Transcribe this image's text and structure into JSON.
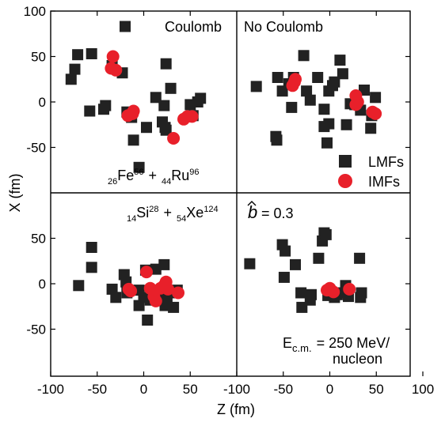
{
  "chart_data": {
    "type": "scatter",
    "xlabel": "Z (fm)",
    "ylabel": "X (fm)",
    "x_ticks_left": [
      "-100",
      "-50",
      "0",
      "50"
    ],
    "x_ticks_right": [
      "-100",
      "-50",
      "0",
      "50",
      "100"
    ],
    "y_ticks_top": [
      "100",
      "50",
      "0",
      "-50"
    ],
    "y_ticks_bottom": [
      "50",
      "0",
      "-50"
    ],
    "panel_xlim": [
      -100,
      100
    ],
    "panel_ylim": [
      -100,
      100
    ],
    "legend": {
      "placement": "inside top-right panel, lower-right",
      "entries": [
        {
          "label": "LMFs",
          "marker": "square",
          "color": "#222222"
        },
        {
          "label": "IMFs",
          "marker": "circle",
          "color": "#e8202a"
        }
      ]
    },
    "colors": {
      "lmf": "#222222",
      "imf": "#e8202a"
    },
    "panels": [
      {
        "id": "top-left",
        "label": "Coulomb",
        "reaction": {
          "z1": "26",
          "sym1": "Fe",
          "a1": "56",
          "plus": "+",
          "z2": "44",
          "sym2": "Ru",
          "a2": "96"
        },
        "lmf": [
          [
            -20,
            83
          ],
          [
            -78,
            25
          ],
          [
            -74,
            36
          ],
          [
            -71,
            52
          ],
          [
            -56,
            53
          ],
          [
            -58,
            -10
          ],
          [
            -43,
            -8
          ],
          [
            -41,
            -4
          ],
          [
            -34,
            40
          ],
          [
            -23,
            32
          ],
          [
            -11,
            -42
          ],
          [
            -5,
            -72
          ],
          [
            -18,
            -11
          ],
          [
            -13,
            -17
          ],
          [
            3,
            -28
          ],
          [
            13,
            5
          ],
          [
            20,
            -22
          ],
          [
            22,
            -4
          ],
          [
            23,
            -28
          ],
          [
            24,
            -31
          ],
          [
            24,
            42
          ],
          [
            29,
            15
          ],
          [
            50,
            -3
          ],
          [
            53,
            -15
          ],
          [
            58,
            0
          ],
          [
            61,
            4
          ]
        ],
        "imf": [
          [
            -33,
            50
          ],
          [
            -35,
            37
          ],
          [
            -30,
            35
          ],
          [
            -17,
            -15
          ],
          [
            -12,
            -13
          ],
          [
            -11,
            -10
          ],
          [
            32,
            -40
          ],
          [
            43,
            -19
          ],
          [
            47,
            -16
          ],
          [
            52,
            -16
          ]
        ]
      },
      {
        "id": "top-right",
        "label": "No Coulomb",
        "lmf": [
          [
            -79,
            17
          ],
          [
            -56,
            27
          ],
          [
            -58,
            -38
          ],
          [
            -57,
            -42
          ],
          [
            -51,
            12
          ],
          [
            -44,
            20
          ],
          [
            -41,
            -6
          ],
          [
            -39,
            27
          ],
          [
            -28,
            51
          ],
          [
            -25,
            12
          ],
          [
            -21,
            2
          ],
          [
            -13,
            27
          ],
          [
            -6,
            -8
          ],
          [
            -6,
            -27
          ],
          [
            -3,
            -45
          ],
          [
            -1,
            -24
          ],
          [
            -1,
            12
          ],
          [
            3,
            18
          ],
          [
            5,
            22
          ],
          [
            11,
            46
          ],
          [
            14,
            31
          ],
          [
            18,
            -25
          ],
          [
            22,
            -2
          ],
          [
            27,
            -3
          ],
          [
            33,
            -9
          ],
          [
            37,
            13
          ],
          [
            44,
            -29
          ],
          [
            45,
            -15
          ],
          [
            49,
            5
          ]
        ],
        "imf": [
          [
            -40,
            18
          ],
          [
            -37,
            25
          ],
          [
            -38,
            22
          ],
          [
            28,
            7
          ],
          [
            30,
            0
          ],
          [
            28,
            -3
          ],
          [
            46,
            -11
          ],
          [
            49,
            -13
          ]
        ]
      },
      {
        "id": "bottom-left",
        "reaction": {
          "z1": "14",
          "sym1": "Si",
          "a1": "28",
          "plus": "+",
          "z2": "54",
          "sym2": "Xe",
          "a2": "124"
        },
        "lmf": [
          [
            -70,
            -2
          ],
          [
            -56,
            40
          ],
          [
            -56,
            18
          ],
          [
            -34,
            -6
          ],
          [
            -30,
            -15
          ],
          [
            -21,
            10
          ],
          [
            -19,
            2
          ],
          [
            -18,
            -10
          ],
          [
            -5,
            -24
          ],
          [
            -5,
            -7
          ],
          [
            0,
            -15
          ],
          [
            2,
            15
          ],
          [
            4,
            -40
          ],
          [
            7,
            -18
          ],
          [
            13,
            16
          ],
          [
            16,
            -10
          ],
          [
            23,
            -24
          ],
          [
            22,
            21
          ],
          [
            25,
            -17
          ],
          [
            29,
            -10
          ],
          [
            32,
            -26
          ],
          [
            36,
            -7
          ]
        ],
        "imf": [
          [
            -16,
            -6
          ],
          [
            -14,
            -8
          ],
          [
            3,
            13
          ],
          [
            7,
            -5
          ],
          [
            11,
            -14
          ],
          [
            13,
            -19
          ],
          [
            18,
            -5
          ],
          [
            22,
            -2
          ],
          [
            24,
            2
          ],
          [
            26,
            -6
          ],
          [
            37,
            -10
          ]
        ]
      },
      {
        "id": "bottom-right",
        "param": {
          "b_symbol": "b",
          "value_text": "= 0.3"
        },
        "energy": {
          "prefix": "E",
          "subscript": "c.m.",
          "value": "= 250 MeV/",
          "line2": "nucleon"
        },
        "lmf": [
          [
            -86,
            22
          ],
          [
            -51,
            43
          ],
          [
            -48,
            36
          ],
          [
            -49,
            7
          ],
          [
            -37,
            21
          ],
          [
            -30,
            -26
          ],
          [
            -31,
            -10
          ],
          [
            -21,
            -18
          ],
          [
            -20,
            -12
          ],
          [
            -12,
            28
          ],
          [
            -8,
            47
          ],
          [
            -6,
            56
          ],
          [
            -4,
            54
          ],
          [
            -2,
            -13
          ],
          [
            5,
            -15
          ],
          [
            8,
            -12
          ],
          [
            12,
            -10
          ],
          [
            17,
            -2
          ],
          [
            19,
            -8
          ],
          [
            20,
            -14
          ],
          [
            32,
            28
          ],
          [
            33,
            -15
          ],
          [
            34,
            -10
          ]
        ],
        "imf": [
          [
            -3,
            -7
          ],
          [
            0,
            -5
          ],
          [
            4,
            -9
          ],
          [
            21,
            -6
          ]
        ]
      }
    ]
  }
}
